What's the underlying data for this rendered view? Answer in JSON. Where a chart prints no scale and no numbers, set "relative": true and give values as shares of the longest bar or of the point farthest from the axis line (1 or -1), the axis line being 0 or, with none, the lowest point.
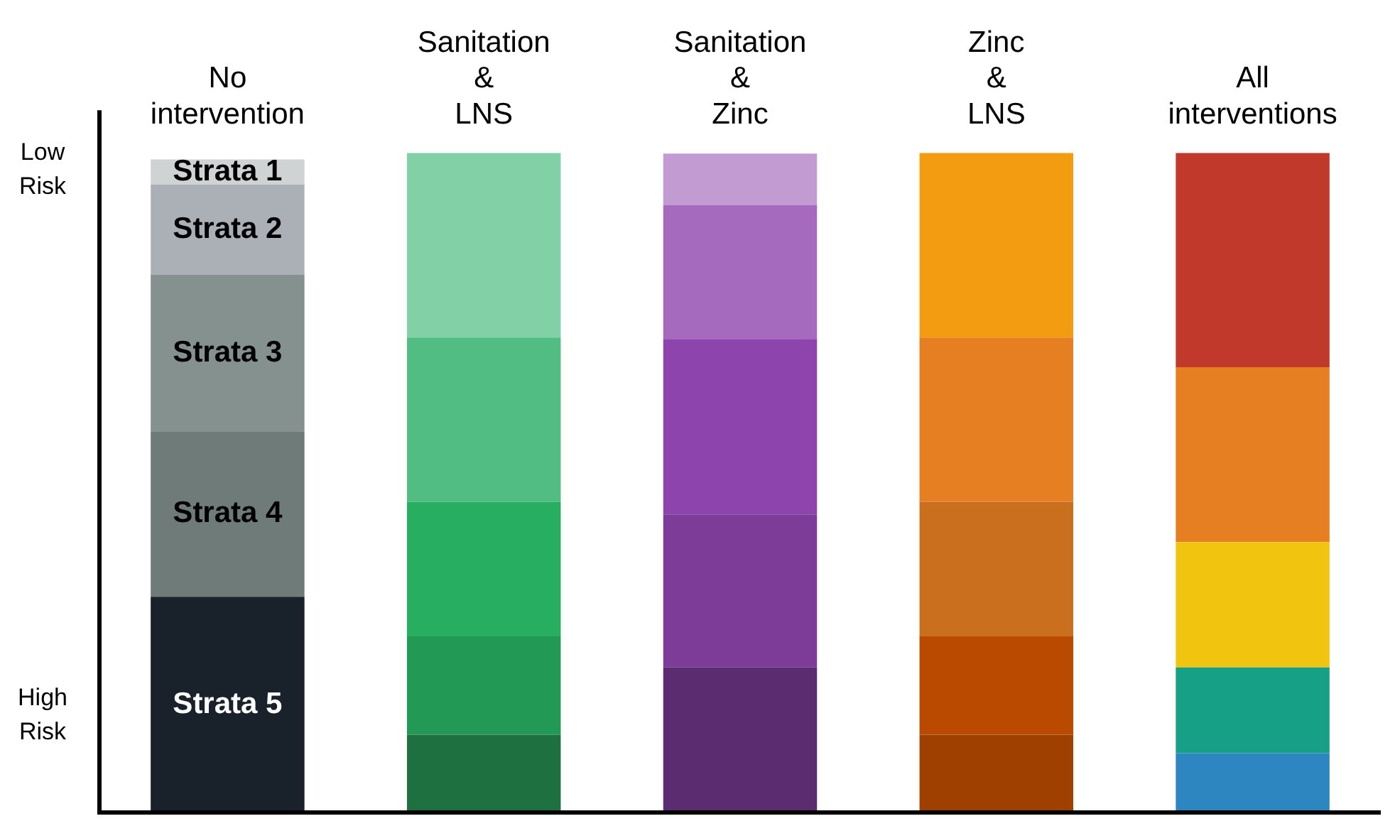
{
  "chart_data": {
    "type": "bar",
    "relative": true,
    "stacked": true,
    "legend": false,
    "grid": false,
    "categories": [
      "No intervention",
      "Sanitation & LNS",
      "Sanitation & Zinc",
      "Zinc & LNS",
      "All interventions"
    ],
    "annotations": [
      "Low Risk",
      "High Risk"
    ],
    "series": [
      {
        "name": "Strata 5",
        "colors": [
          "#19212b",
          "#1e7040",
          "#5b2c6f",
          "#a04000",
          "#2e86c1"
        ],
        "values": [
          0.327,
          0.118,
          0.22,
          0.118,
          0.09
        ]
      },
      {
        "name": "Strata 4",
        "colors": [
          "#6e7b78",
          "#229954",
          "#7d3c98",
          "#ba4a00",
          "#16a085"
        ],
        "values": [
          0.251,
          0.149,
          0.232,
          0.149,
          0.13
        ]
      },
      {
        "name": "Strata 3",
        "colors": [
          "#85918f",
          "#27ae60",
          "#8e44ad",
          "#ca6f1e",
          "#f1c40f"
        ],
        "values": [
          0.237,
          0.204,
          0.265,
          0.204,
          0.19
        ]
      },
      {
        "name": "Strata 2",
        "colors": [
          "#aab0b5",
          "#52bd82",
          "#a569bd",
          "#e67e22",
          "#e67e22"
        ],
        "values": [
          0.137,
          0.249,
          0.204,
          0.249,
          0.265
        ]
      },
      {
        "name": "Strata 1",
        "colors": [
          "#d0d3d4",
          "#82d0a5",
          "#c39bd3",
          "#f39c12",
          "#c0392b"
        ],
        "values": [
          0.038,
          0.28,
          0.078,
          0.28,
          0.325
        ]
      }
    ]
  }
}
